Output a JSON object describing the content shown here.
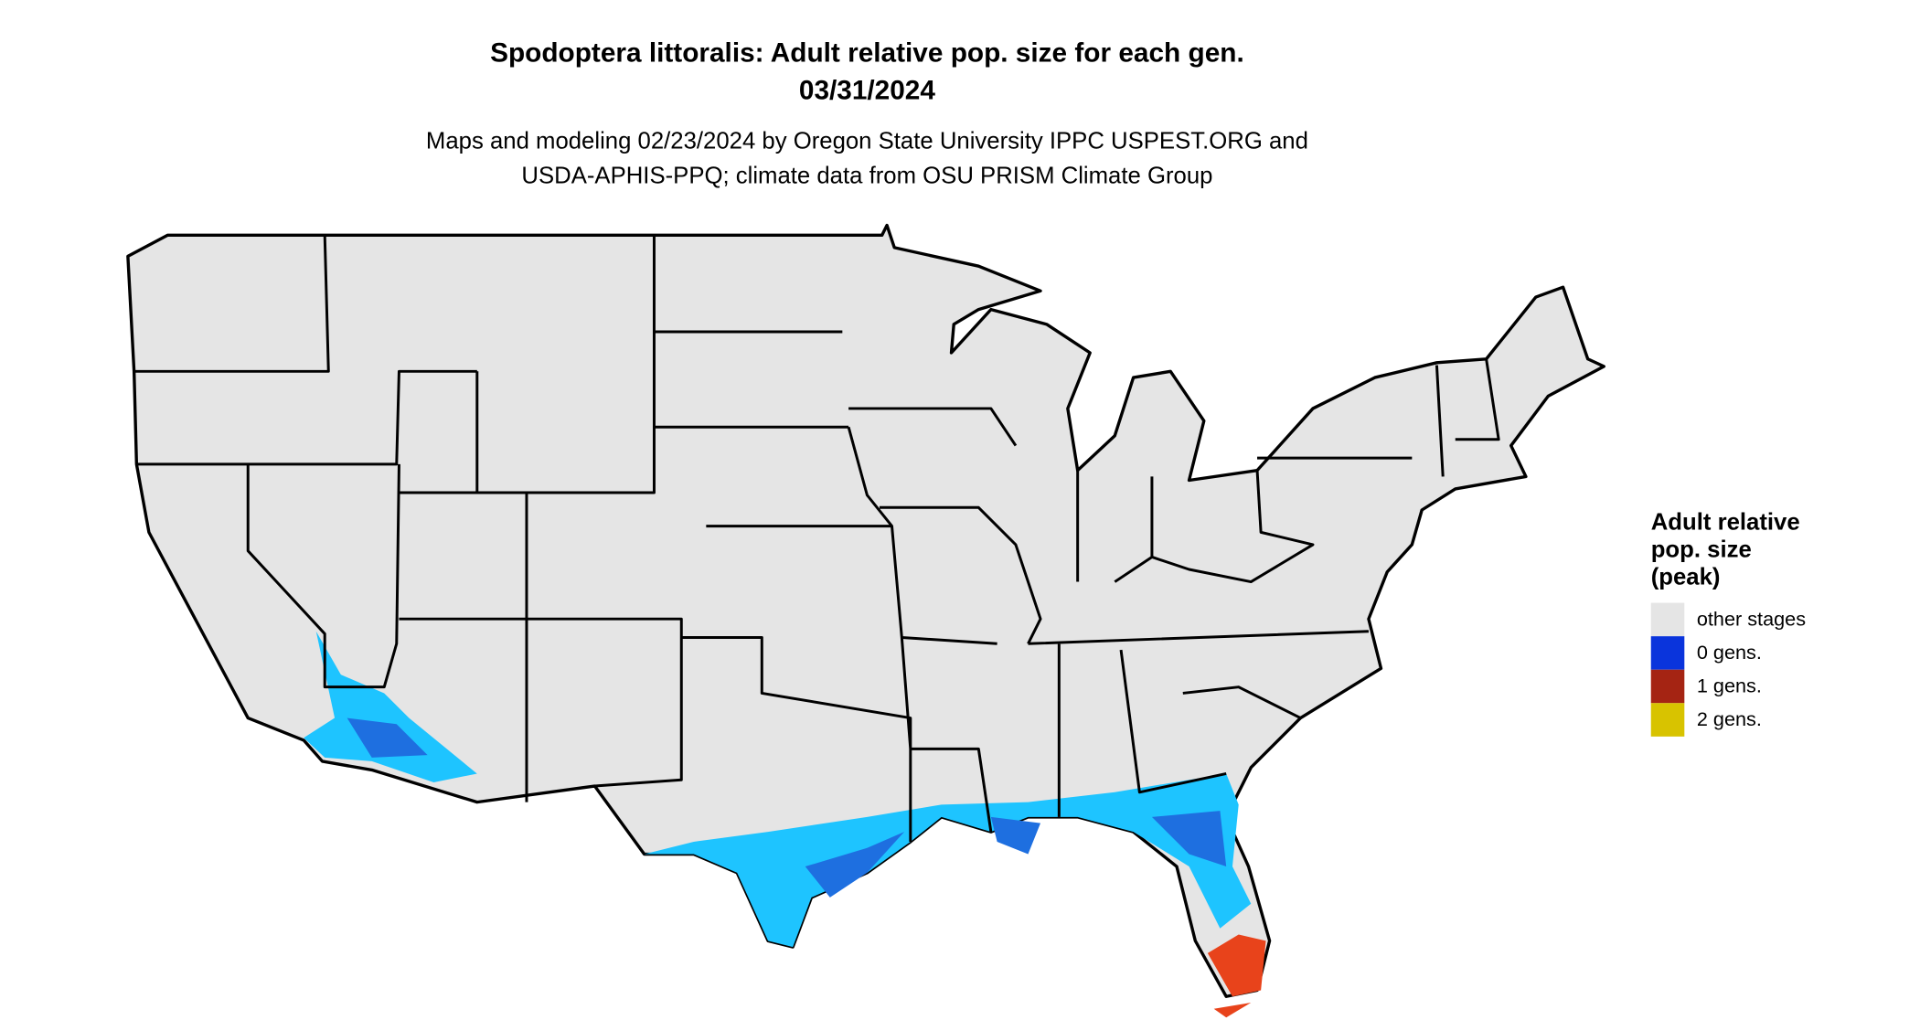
{
  "title": "Spodoptera littoralis: Adult relative pop. size for each gen.",
  "date": "03/31/2024",
  "subtitle": [
    "Maps and modeling 02/23/2024 by Oregon State University IPPC USPEST.ORG and",
    "USDA-APHIS-PPQ; climate data from OSU PRISM Climate Group"
  ],
  "legend": {
    "title": [
      "Adult relative",
      "pop. size",
      "(peak)"
    ],
    "items": [
      {
        "label": "other stages",
        "color": "#e5e5e5"
      },
      {
        "label": "0 gens.",
        "color": "#0a34dc"
      },
      {
        "label": "1 gens.",
        "color": "#a52413"
      },
      {
        "label": "2 gens.",
        "color": "#d8c300"
      }
    ]
  }
}
